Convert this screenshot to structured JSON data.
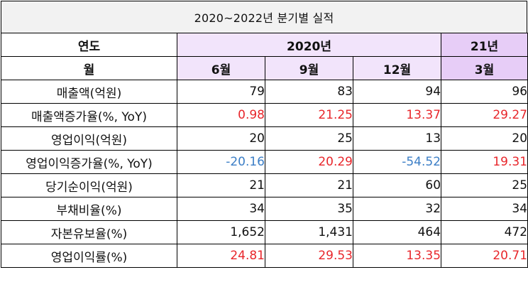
{
  "title": "2020~2022년 분기별 실적",
  "header": {
    "year_label": "연도",
    "year_2020": "2020년",
    "year_21": "21년",
    "month_label": "월",
    "months": [
      "6월",
      "9월",
      "12월",
      "3월"
    ]
  },
  "colors": {
    "header_light": "#f2e4fb",
    "header_dark": "#e7cdf7",
    "positive_growth": "#e8262b",
    "negative_growth": "#3b7ec6"
  },
  "rows": [
    {
      "label": "매출액(억원)",
      "values": [
        "79",
        "83",
        "94",
        "96"
      ],
      "styles": [
        "",
        "",
        "",
        ""
      ]
    },
    {
      "label": "매출액증가율(%, YoY)",
      "values": [
        "0.98",
        "21.25",
        "13.37",
        "29.27"
      ],
      "styles": [
        "red",
        "red",
        "red",
        "red"
      ]
    },
    {
      "label": "영업이익(억원)",
      "values": [
        "20",
        "25",
        "13",
        "20"
      ],
      "styles": [
        "",
        "",
        "",
        ""
      ]
    },
    {
      "label": "영업이익증가율(%, YoY)",
      "values": [
        "-20.16",
        "20.29",
        "-54.52",
        "19.31"
      ],
      "styles": [
        "blue",
        "red",
        "blue",
        "red"
      ]
    },
    {
      "label": "당기순이익(억원)",
      "values": [
        "21",
        "21",
        "60",
        "25"
      ],
      "styles": [
        "",
        "",
        "",
        ""
      ]
    },
    {
      "label": "부채비율(%)",
      "values": [
        "34",
        "35",
        "32",
        "34"
      ],
      "styles": [
        "",
        "",
        "",
        ""
      ]
    },
    {
      "label": "자본유보율(%)",
      "values": [
        "1,652",
        "1,431",
        "464",
        "472"
      ],
      "styles": [
        "",
        "",
        "",
        ""
      ]
    },
    {
      "label": "영업이익률(%)",
      "values": [
        "24.81",
        "29.53",
        "13.35",
        "20.71"
      ],
      "styles": [
        "red",
        "red",
        "red",
        "red"
      ]
    }
  ]
}
